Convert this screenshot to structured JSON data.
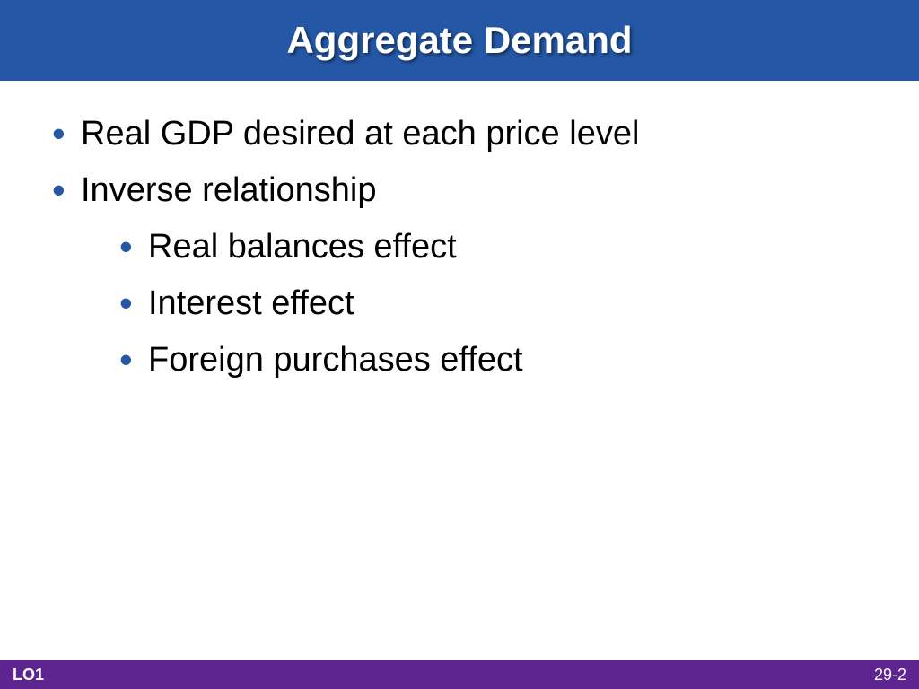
{
  "header": {
    "title": "Aggregate Demand",
    "background_color": "#2457a5",
    "title_color": "#ffffff",
    "title_fontsize": 42,
    "title_fontweight": "bold"
  },
  "content": {
    "bullet_color": "#2457a5",
    "text_color": "#000000",
    "fontsize": 38,
    "items": [
      {
        "level": 1,
        "text": "Real GDP desired at each price level"
      },
      {
        "level": 1,
        "text": "Inverse relationship"
      },
      {
        "level": 2,
        "text": "Real balances effect"
      },
      {
        "level": 2,
        "text": "Interest effect"
      },
      {
        "level": 2,
        "text": "Foreign purchases effect"
      }
    ]
  },
  "footer": {
    "background_color": "#5e2590",
    "text_color": "#ffffff",
    "left_label": "LO1",
    "right_label": "29-2",
    "fontsize": 18
  },
  "background_color": "#ffffff"
}
